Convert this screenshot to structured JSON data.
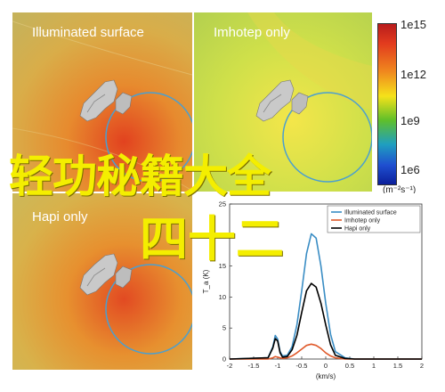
{
  "panels": [
    {
      "title": "Illuminated surface"
    },
    {
      "title": "Imhotep only"
    },
    {
      "title": "Hapi only"
    }
  ],
  "colorbar": {
    "ticks": [
      "1e15",
      "1e12",
      "1e9",
      "1e6"
    ],
    "unit": "(m⁻²s⁻¹)"
  },
  "overlay": {
    "line1": "轻功秘籍大全",
    "line2": "四十二"
  },
  "colors": {
    "illuminated": "#3a8dc4",
    "imhotep": "#e05a2b",
    "hapi": "#000000",
    "overlay_text": "#f4ee00",
    "orbit_circle": "#4a9fd0"
  },
  "chart_data": {
    "type": "line",
    "xlabel": "(km/s)",
    "ylabel": "T_a (K)",
    "xlim": [
      -2,
      2
    ],
    "ylim": [
      0,
      25
    ],
    "xticks": [
      "-2",
      "-1.5",
      "-1",
      "-0.5",
      "0",
      "0.5",
      "1",
      "1.5",
      "2"
    ],
    "yticks": [
      "0",
      "5",
      "10",
      "15",
      "20",
      "25"
    ],
    "legend_position": "top-right",
    "x": [
      -2.0,
      -1.2,
      -1.1,
      -1.05,
      -1.0,
      -0.95,
      -0.9,
      -0.8,
      -0.7,
      -0.6,
      -0.5,
      -0.4,
      -0.3,
      -0.2,
      -0.1,
      0.0,
      0.1,
      0.2,
      0.4,
      0.6,
      1.0,
      2.0
    ],
    "series": [
      {
        "name": "Illuminated surface",
        "values": [
          0,
          0.2,
          2.0,
          3.8,
          3.2,
          1.2,
          0.5,
          0.6,
          2.0,
          5.5,
          11.0,
          17.0,
          20.2,
          19.5,
          15.0,
          9.0,
          4.0,
          1.2,
          0.2,
          0,
          0,
          0
        ]
      },
      {
        "name": "Imhotep only",
        "values": [
          0,
          0,
          0.2,
          0.4,
          0.3,
          0.2,
          0.1,
          0.2,
          0.5,
          1.0,
          1.6,
          2.2,
          2.4,
          2.2,
          1.7,
          1.0,
          0.5,
          0.2,
          0,
          0,
          0,
          0
        ]
      },
      {
        "name": "Hapi only",
        "values": [
          0,
          0.2,
          1.8,
          3.3,
          2.9,
          1.0,
          0.3,
          0.4,
          1.5,
          3.8,
          7.5,
          11.0,
          12.2,
          11.6,
          9.0,
          5.5,
          2.3,
          0.6,
          0.1,
          0,
          0,
          0
        ]
      }
    ]
  }
}
